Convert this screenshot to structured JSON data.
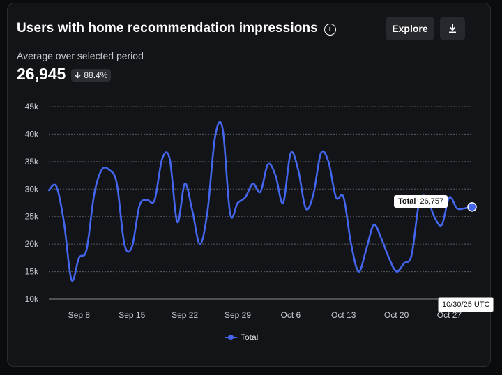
{
  "header": {
    "title": "Users with home recommendation impressions",
    "info_icon": "info-icon",
    "explore_label": "Explore",
    "download_icon": "download-icon"
  },
  "summary": {
    "subtitle": "Average over selected period",
    "value": "26,945",
    "delta": "88.4%",
    "delta_icon": "arrow-down-icon"
  },
  "tooltip": {
    "label": "Total",
    "value": "26,757"
  },
  "hover_date": "10/30/25 UTC",
  "legend": {
    "label": "Total"
  },
  "colors": {
    "line": "#4466ee",
    "background": "#131417",
    "grid": "#5a5c62"
  },
  "chart_data": {
    "type": "line",
    "title": "Users with home recommendation impressions",
    "xlabel": "",
    "ylabel": "",
    "ylim": [
      10000,
      45000
    ],
    "yticks": [
      "10k",
      "15k",
      "20k",
      "25k",
      "30k",
      "35k",
      "40k",
      "45k"
    ],
    "ytick_values": [
      10000,
      15000,
      20000,
      25000,
      30000,
      35000,
      40000,
      45000
    ],
    "xticks": [
      "Sep 8",
      "Sep 15",
      "Sep 22",
      "Sep 29",
      "Oct 6",
      "Oct 13",
      "Oct 20",
      "Oct 27"
    ],
    "xtick_index": [
      4,
      11,
      18,
      25,
      32,
      39,
      46,
      53
    ],
    "grid": true,
    "legend_position": "bottom-center",
    "x": [
      "Sep 4",
      "Sep 5",
      "Sep 6",
      "Sep 7",
      "Sep 8",
      "Sep 9",
      "Sep 10",
      "Sep 11",
      "Sep 12",
      "Sep 13",
      "Sep 14",
      "Sep 15",
      "Sep 16",
      "Sep 17",
      "Sep 18",
      "Sep 19",
      "Sep 20",
      "Sep 21",
      "Sep 22",
      "Sep 23",
      "Sep 24",
      "Sep 25",
      "Sep 26",
      "Sep 27",
      "Sep 28",
      "Sep 29",
      "Sep 30",
      "Oct 1",
      "Oct 2",
      "Oct 3",
      "Oct 4",
      "Oct 5",
      "Oct 6",
      "Oct 7",
      "Oct 8",
      "Oct 9",
      "Oct 10",
      "Oct 11",
      "Oct 12",
      "Oct 13",
      "Oct 14",
      "Oct 15",
      "Oct 16",
      "Oct 17",
      "Oct 18",
      "Oct 19",
      "Oct 20",
      "Oct 21",
      "Oct 22",
      "Oct 23",
      "Oct 24",
      "Oct 25",
      "Oct 26",
      "Oct 27",
      "Oct 28",
      "Oct 29",
      "Oct 30"
    ],
    "series": [
      {
        "name": "Total",
        "values": [
          29800,
          30500,
          24000,
          13500,
          17500,
          19000,
          29000,
          33500,
          33500,
          31000,
          20000,
          19500,
          27000,
          28000,
          28000,
          35500,
          35500,
          24000,
          31000,
          26000,
          20000,
          26000,
          39500,
          41000,
          25500,
          27500,
          28500,
          31000,
          29500,
          34500,
          32500,
          27500,
          36500,
          33500,
          26500,
          29000,
          36500,
          35000,
          28500,
          28500,
          20000,
          15000,
          19000,
          23500,
          21000,
          17500,
          15000,
          16500,
          18000,
          27500,
          28500,
          25000,
          23500,
          28500,
          26500,
          26500,
          26757
        ]
      }
    ]
  }
}
